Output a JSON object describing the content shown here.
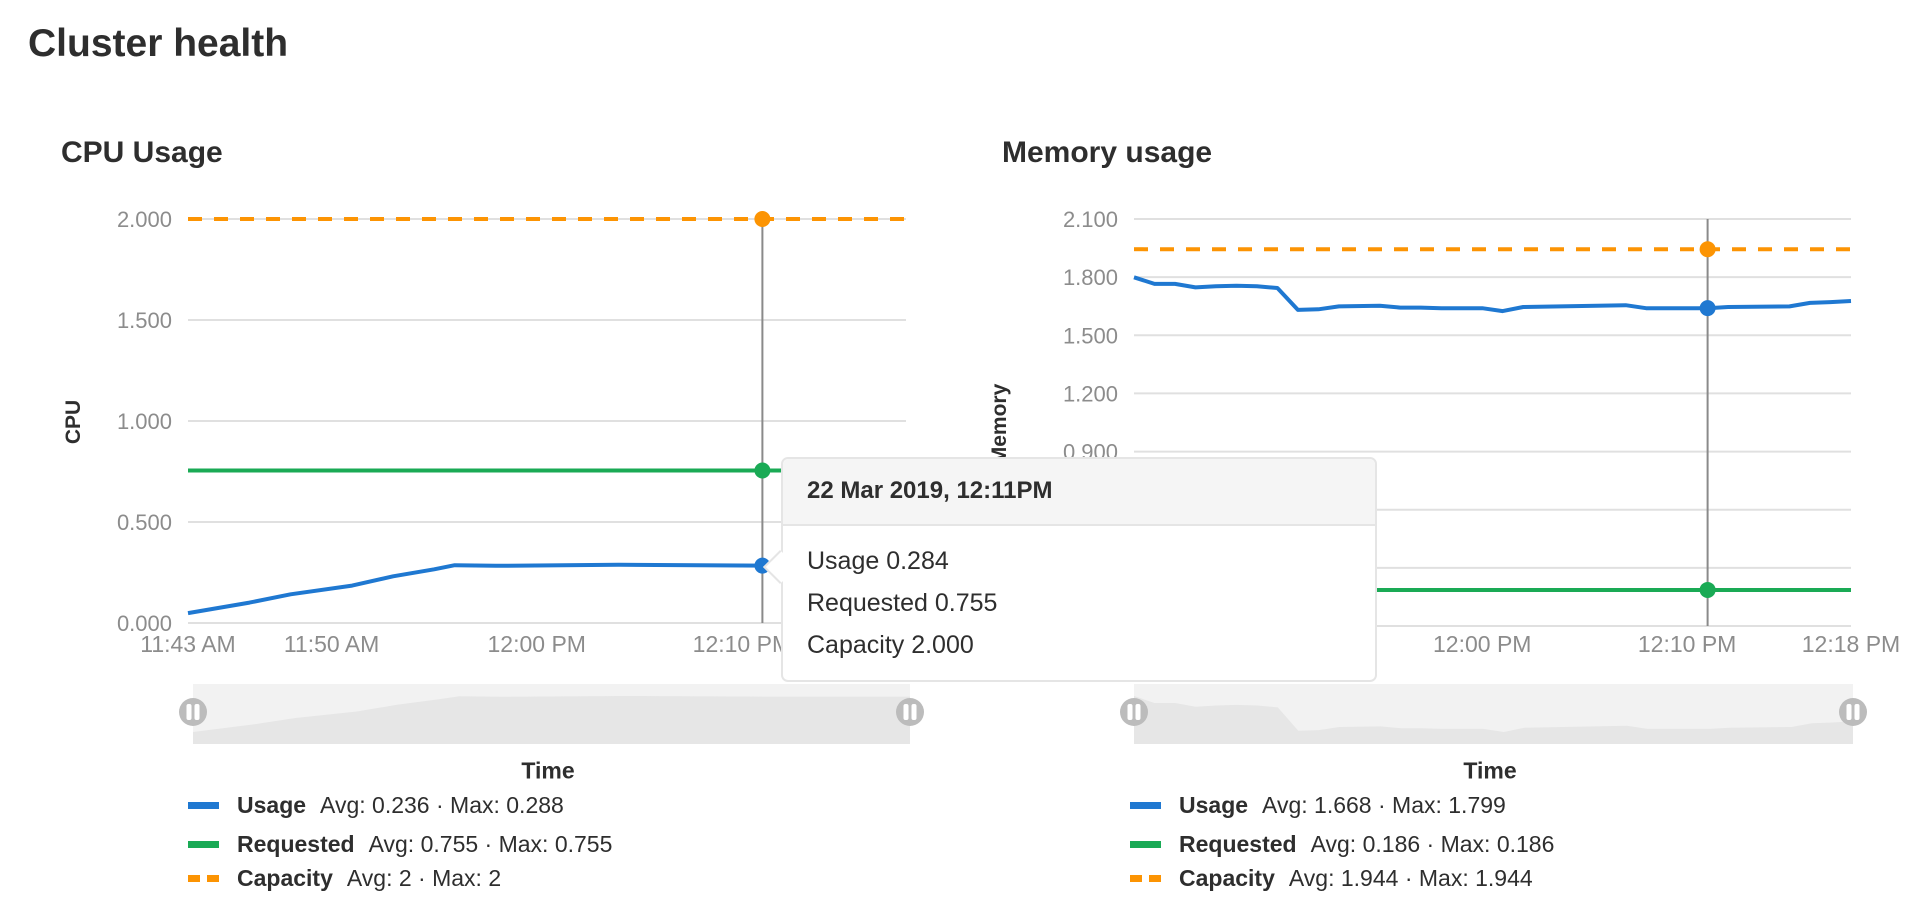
{
  "page": {
    "title": "Cluster health"
  },
  "colors": {
    "usage": "#1f78d1",
    "requested": "#1aaa55",
    "capacity": "#fc9403",
    "grid": "#e0e0e0",
    "tick_text": "#8c8c8c",
    "crosshair": "#8a8a8a",
    "slider_bg": "#f2f2f2",
    "slider_area": "#e6e6e6",
    "slider_handle": "#bcbcbc"
  },
  "tooltip": {
    "date": "22 Mar 2019, 12:11PM",
    "rows": [
      "Usage 0.284",
      "Requested 0.755",
      "Capacity 2.000"
    ]
  },
  "chart_data": [
    {
      "type": "line",
      "title": "CPU Usage",
      "ylabel": "CPU",
      "xlabel": "Time",
      "ylim": [
        0,
        2.0
      ],
      "xlim": [
        "11:43",
        "12:18"
      ],
      "grid": true,
      "legend": "bottom",
      "yticks": [
        {
          "value": 0,
          "label": "0.000"
        },
        {
          "value": 0.5,
          "label": "0.500"
        },
        {
          "value": 1.0,
          "label": "1.000"
        },
        {
          "value": 1.5,
          "label": "1.500"
        },
        {
          "value": 2.0,
          "label": "2.000"
        }
      ],
      "xticks": [
        {
          "time": "11:43",
          "label": "11:43 AM"
        },
        {
          "time": "11:50",
          "label": "11:50 AM"
        },
        {
          "time": "12:00",
          "label": "12:00 PM"
        },
        {
          "time": "12:10",
          "label": "12:10 PM"
        }
      ],
      "crosshair": "12:11",
      "series": [
        {
          "name": "Usage",
          "color": "#1f78d1",
          "style": "solid",
          "stats": "Avg: 0.236 · Max: 0.288",
          "points": [
            [
              "11:43",
              0.049
            ],
            [
              "11:46",
              0.101
            ],
            [
              "11:48",
              0.142
            ],
            [
              "11:51",
              0.185
            ],
            [
              "11:53",
              0.231
            ],
            [
              "11:55",
              0.266
            ],
            [
              "11:56",
              0.286
            ],
            [
              "11:58",
              0.283
            ],
            [
              "12:04",
              0.288
            ],
            [
              "12:11",
              0.284
            ],
            [
              "12:18",
              0.284
            ]
          ]
        },
        {
          "name": "Requested",
          "color": "#1aaa55",
          "style": "solid",
          "stats": "Avg: 0.755 · Max: 0.755",
          "points": [
            [
              "11:43",
              0.755
            ],
            [
              "12:18",
              0.755
            ]
          ]
        },
        {
          "name": "Capacity",
          "color": "#fc9403",
          "style": "dashed",
          "stats": "Avg: 2 · Max: 2",
          "points": [
            [
              "11:43",
              2.0
            ],
            [
              "12:18",
              2.0
            ]
          ]
        }
      ]
    },
    {
      "type": "line",
      "title": "Memory usage",
      "ylabel": "Memory",
      "xlabel": "Time",
      "ylim": [
        0,
        2.1
      ],
      "xlim": [
        "11:43",
        "12:18"
      ],
      "grid": true,
      "legend": "bottom",
      "yticks": [
        {
          "value": 0,
          "label": ""
        },
        {
          "value": 0.3,
          "label": ""
        },
        {
          "value": 0.6,
          "label": ""
        },
        {
          "value": 0.9,
          "label": "0.900"
        },
        {
          "value": 1.2,
          "label": "1.200"
        },
        {
          "value": 1.5,
          "label": "1.500"
        },
        {
          "value": 1.8,
          "label": "1.800"
        },
        {
          "value": 2.1,
          "label": "2.100"
        }
      ],
      "xticks": [
        {
          "time": "12:00",
          "label": "12:00 PM"
        },
        {
          "time": "12:10",
          "label": "12:10 PM"
        },
        {
          "time": "12:18",
          "label": "12:18 PM"
        }
      ],
      "crosshair": "12:11",
      "series": [
        {
          "name": "Usage",
          "color": "#1f78d1",
          "style": "solid",
          "stats": "Avg: 1.668 · Max: 1.799",
          "points": [
            [
              "11:43",
              1.799
            ],
            [
              "11:44",
              1.765
            ],
            [
              "11:45",
              1.765
            ],
            [
              "11:46",
              1.747
            ],
            [
              "11:47",
              1.753
            ],
            [
              "11:48",
              1.756
            ],
            [
              "11:49",
              1.753
            ],
            [
              "11:50",
              1.744
            ],
            [
              "11:51",
              1.631
            ],
            [
              "11:52",
              1.634
            ],
            [
              "11:53",
              1.649
            ],
            [
              "11:55",
              1.652
            ],
            [
              "11:56",
              1.643
            ],
            [
              "11:57",
              1.643
            ],
            [
              "11:58",
              1.64
            ],
            [
              "12:00",
              1.64
            ],
            [
              "12:01",
              1.625
            ],
            [
              "12:02",
              1.646
            ],
            [
              "12:07",
              1.655
            ],
            [
              "12:08",
              1.64
            ],
            [
              "12:11",
              1.64
            ],
            [
              "12:12",
              1.646
            ],
            [
              "12:15",
              1.649
            ],
            [
              "12:16",
              1.667
            ],
            [
              "12:17",
              1.671
            ],
            [
              "12:18",
              1.677
            ]
          ]
        },
        {
          "name": "Requested",
          "color": "#1aaa55",
          "style": "solid",
          "stats": "Avg: 0.186 · Max: 0.186",
          "points": [
            [
              "11:43",
              0.186
            ],
            [
              "12:18",
              0.186
            ]
          ]
        },
        {
          "name": "Capacity",
          "color": "#fc9403",
          "style": "dashed",
          "stats": "Avg: 1.944 · Max: 1.944",
          "points": [
            [
              "11:43",
              1.944
            ],
            [
              "12:18",
              1.944
            ]
          ]
        }
      ]
    }
  ]
}
